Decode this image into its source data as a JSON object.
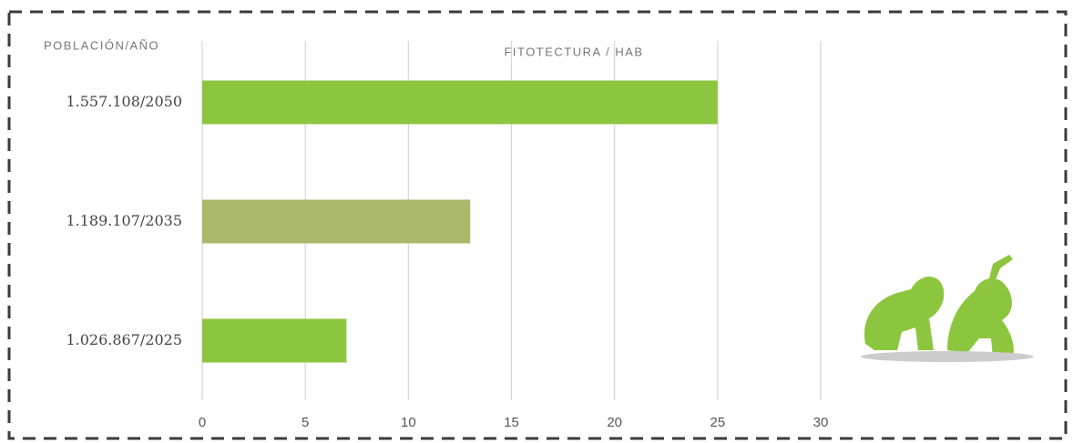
{
  "chart_data": {
    "type": "barh",
    "title": "FITOTECTURA / HAB",
    "y_label": "POBLACIÓN/AÑO",
    "categories": [
      "1.557.108/2050",
      "1.189.107/2035",
      "1.026.867/2025"
    ],
    "values": [
      25,
      13,
      7
    ],
    "colors": [
      "#8cc63f",
      "#a9b96c",
      "#8cc63f"
    ],
    "xlim": [
      0,
      30
    ],
    "xticks": [
      0,
      5,
      10,
      15,
      20,
      25,
      30
    ],
    "grid": true
  }
}
